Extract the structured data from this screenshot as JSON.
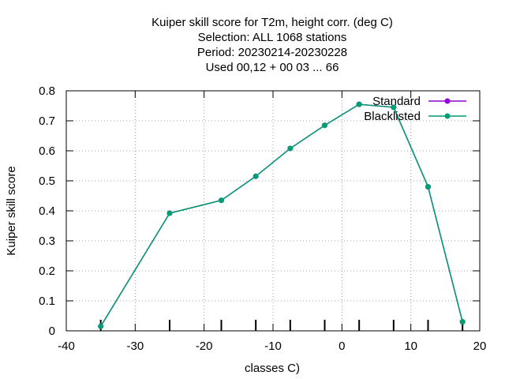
{
  "chart_data": {
    "type": "line",
    "title_lines": [
      "Kuiper skill score  for T2m, height corr. (deg C)",
      "Selection: ALL   1068 stations",
      "Period: 20230214-20230228",
      "Used  00,12  + 00 03 ... 66"
    ],
    "xlabel": "classes C)",
    "ylabel": "Kuiper skill score",
    "xlim": [
      -40,
      20
    ],
    "ylim": [
      0,
      0.8
    ],
    "xticks": [
      -40,
      -30,
      -20,
      -10,
      0,
      10,
      20
    ],
    "yticks": [
      0,
      0.1,
      0.2,
      0.3,
      0.4,
      0.5,
      0.6,
      0.7,
      0.8
    ],
    "grid": true,
    "legend_position": "top-right",
    "x": [
      -35,
      -25,
      -17.5,
      -12.5,
      -7.5,
      -2.5,
      2.5,
      7.5,
      12.5,
      17.5
    ],
    "series": [
      {
        "name": "Standard",
        "color": "#9400d3",
        "values": [
          0.015,
          0.392,
          0.435,
          0.515,
          0.608,
          0.685,
          0.755,
          0.745,
          0.48,
          0.03
        ]
      },
      {
        "name": "Blacklisted",
        "color": "#009e73",
        "values": [
          0.015,
          0.392,
          0.435,
          0.515,
          0.608,
          0.685,
          0.755,
          0.745,
          0.48,
          0.03
        ]
      }
    ]
  }
}
